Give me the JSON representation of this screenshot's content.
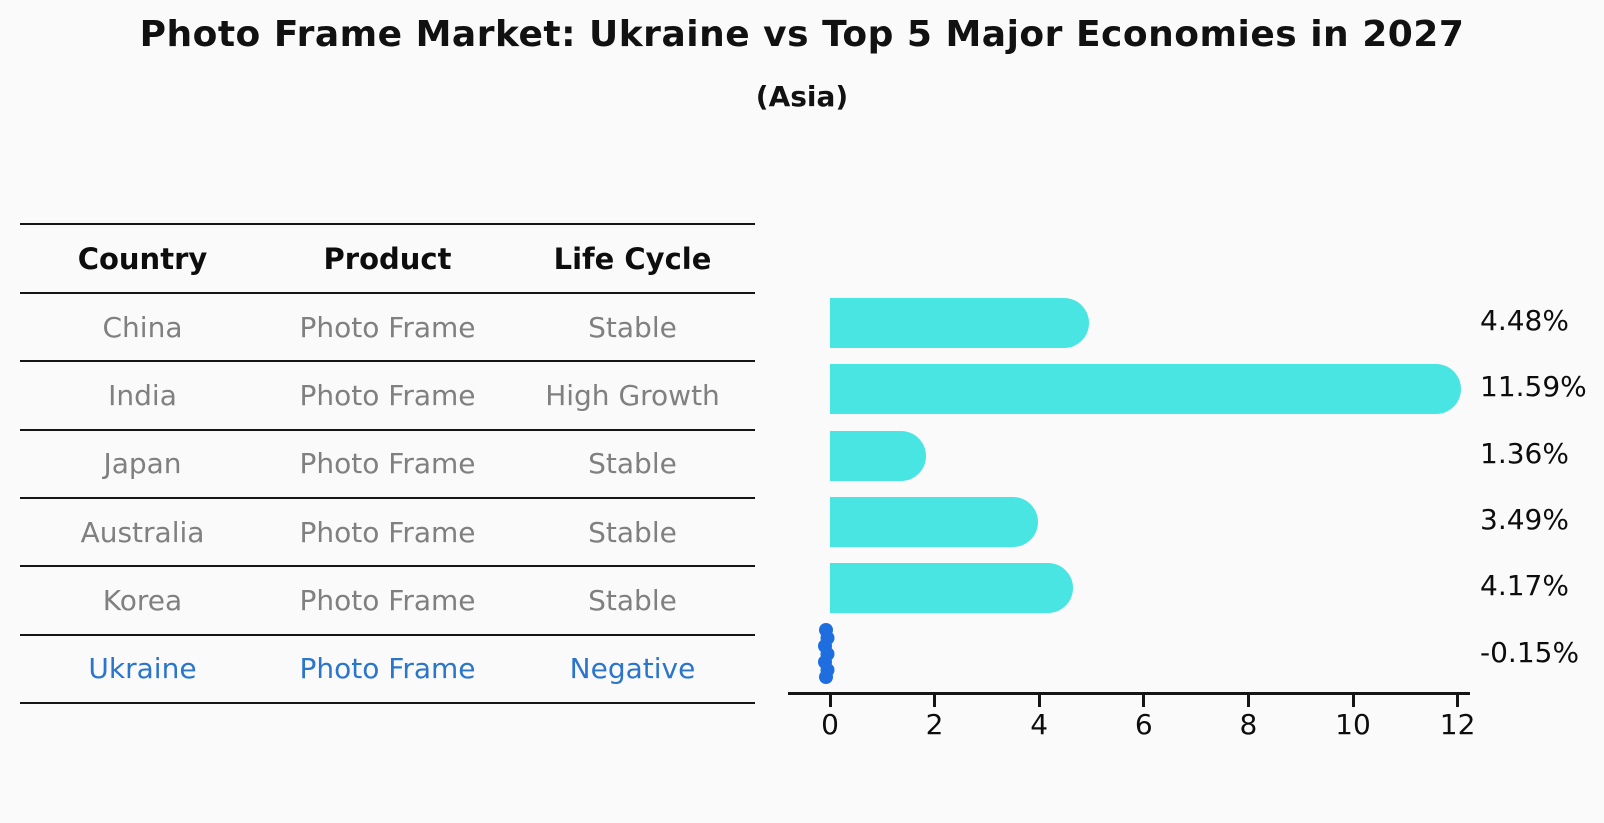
{
  "title": "Photo Frame Market: Ukraine vs Top 5 Major Economies in 2027",
  "subtitle": "(Asia)",
  "table": {
    "columns": [
      "Country",
      "Product",
      "Life Cycle"
    ],
    "rows": [
      {
        "country": "China",
        "product": "Photo Frame",
        "life_cycle": "Stable",
        "highlight": false
      },
      {
        "country": "India",
        "product": "Photo Frame",
        "life_cycle": "High Growth",
        "highlight": false
      },
      {
        "country": "Japan",
        "product": "Photo Frame",
        "life_cycle": "Stable",
        "highlight": false
      },
      {
        "country": "Australia",
        "product": "Photo Frame",
        "life_cycle": "Stable",
        "highlight": false
      },
      {
        "country": "Korea",
        "product": "Photo Frame",
        "life_cycle": "Stable",
        "highlight": false
      },
      {
        "country": "Ukraine",
        "product": "Photo Frame",
        "life_cycle": "Negative",
        "highlight": true
      }
    ]
  },
  "chart_data": {
    "type": "bar",
    "orientation": "horizontal",
    "title": "Photo Frame Market: Ukraine vs Top 5 Major Economies in 2027",
    "subtitle": "(Asia)",
    "categories": [
      "China",
      "India",
      "Japan",
      "Australia",
      "Korea",
      "Ukraine"
    ],
    "values": [
      4.48,
      11.59,
      1.36,
      3.49,
      4.17,
      -0.15
    ],
    "value_labels": [
      "4.48%",
      "11.59%",
      "1.36%",
      "3.49%",
      "4.17%",
      "-0.15%"
    ],
    "xlabel": "",
    "ylabel": "",
    "xlim": [
      0,
      12
    ],
    "xticks": [
      0,
      2,
      4,
      6,
      8,
      10,
      12
    ],
    "grid": false,
    "legend": false,
    "bar_color": "#48e5e3",
    "negative_marker_color": "#1e6ee0",
    "highlight_text_color": "#2b76cc",
    "table_text_color": "#808080",
    "axis_color": "#151515"
  }
}
